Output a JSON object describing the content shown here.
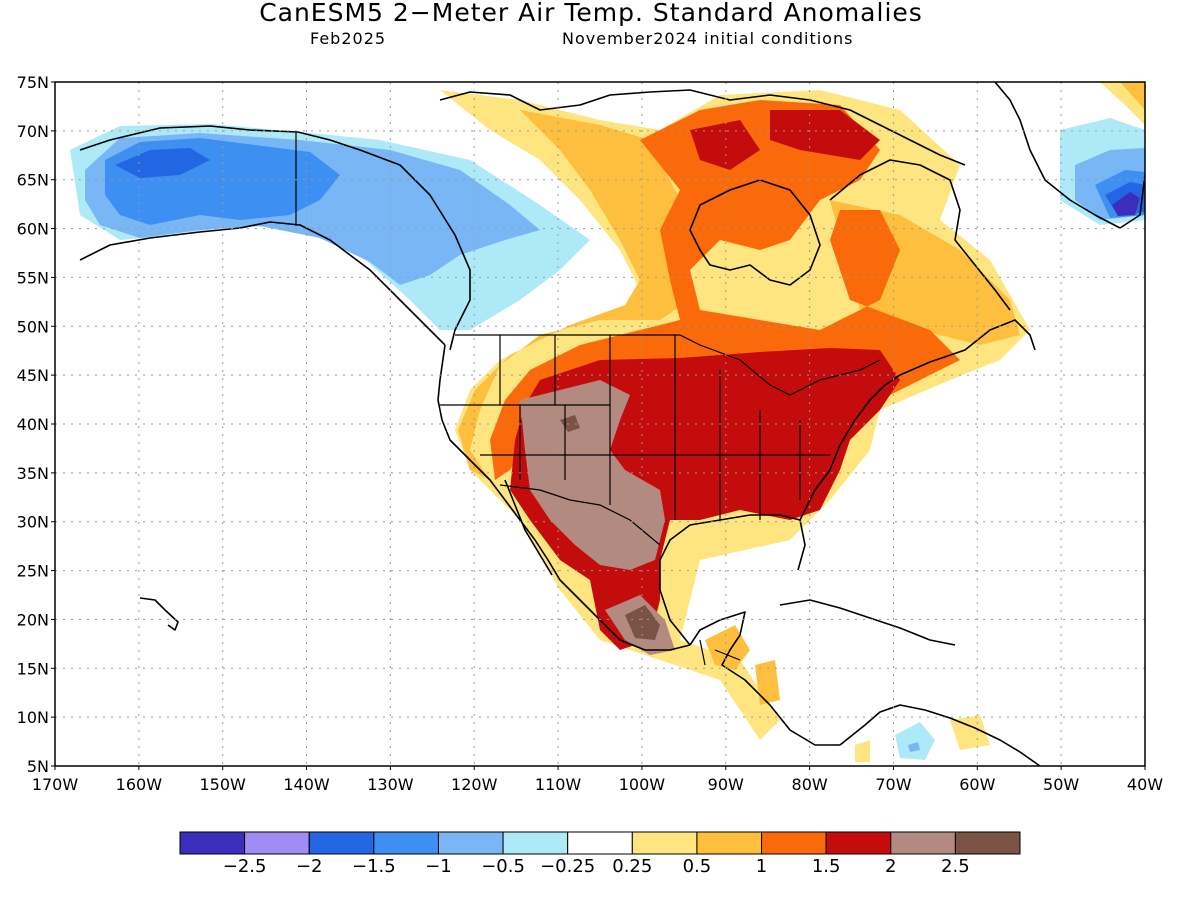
{
  "header": {
    "title": "CanESM5 2−Meter Air Temp. Standard Anomalies",
    "valid_month": "Feb2025",
    "init": "November2024 initial conditions"
  },
  "map": {
    "lat_labels": [
      "5N",
      "10N",
      "15N",
      "20N",
      "25N",
      "30N",
      "35N",
      "40N",
      "45N",
      "50N",
      "55N",
      "60N",
      "65N",
      "70N",
      "75N"
    ],
    "lon_labels": [
      "170W",
      "160W",
      "150W",
      "140W",
      "130W",
      "120W",
      "110W",
      "100W",
      "90W",
      "80W",
      "70W",
      "60W",
      "50W",
      "40W"
    ]
  },
  "colorbar": {
    "colors": [
      "#3b2ebd",
      "#a18cf5",
      "#2266e3",
      "#3d8ff2",
      "#79b6f5",
      "#ade9f7",
      "#ffffff",
      "#ffe580",
      "#fdbf3d",
      "#fa6a0a",
      "#c40c0c",
      "#b38a80",
      "#7a5246"
    ],
    "labels": [
      "−2.5",
      "−2",
      "−1.5",
      "−1",
      "−0.5",
      "−0.25",
      "0.25",
      "0.5",
      "1",
      "1.5",
      "2",
      "2.5"
    ]
  }
}
